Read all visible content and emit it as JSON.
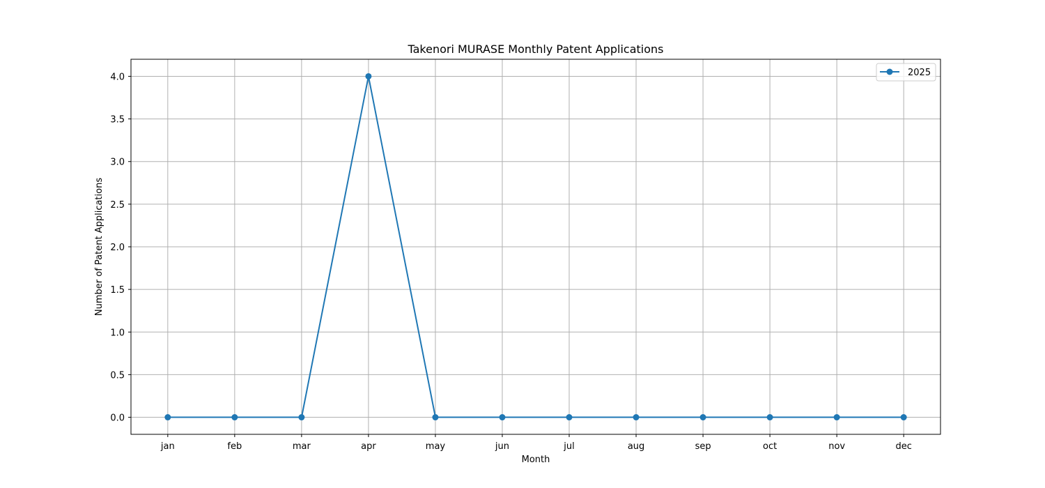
{
  "chart_data": {
    "type": "line",
    "title": "Takenori MURASE Monthly Patent Applications",
    "xlabel": "Month",
    "ylabel": "Number of Patent Applications",
    "categories": [
      "jan",
      "feb",
      "mar",
      "apr",
      "may",
      "jun",
      "jul",
      "aug",
      "sep",
      "oct",
      "nov",
      "dec"
    ],
    "series": [
      {
        "name": "2025",
        "values": [
          0,
          0,
          0,
          4,
          0,
          0,
          0,
          0,
          0,
          0,
          0,
          0
        ],
        "color": "#1f77b4",
        "marker": "circle"
      }
    ],
    "ylim": [
      -0.2,
      4.2
    ],
    "yticks": [
      "0.0",
      "0.5",
      "1.0",
      "1.5",
      "2.0",
      "2.5",
      "3.0",
      "3.5",
      "4.0"
    ],
    "grid": true,
    "legend_position": "top-right"
  }
}
